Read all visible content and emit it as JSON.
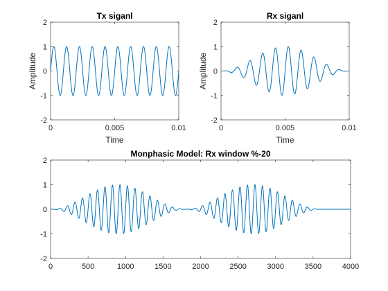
{
  "chart_data": [
    {
      "type": "line",
      "title": "Tx siganl",
      "xlabel": "Time",
      "ylabel": "Amplitude",
      "xlim": [
        0,
        0.01
      ],
      "ylim": [
        -2,
        2
      ],
      "xticks": [
        0,
        0.005,
        0.01
      ],
      "xtick_labels": [
        "0",
        "0.005",
        "0.01"
      ],
      "yticks": [
        -2,
        -1,
        0,
        1,
        2
      ],
      "ytick_labels": [
        "-2",
        "-1",
        "0",
        "1",
        "2"
      ],
      "grid": false,
      "series": [
        {
          "color": "#0072bd",
          "waveform": "sine",
          "amplitude": 1,
          "frequency_hz": 1000,
          "x_start": 0,
          "x_end": 0.01
        }
      ]
    },
    {
      "type": "line",
      "title": "Rx siganl",
      "xlabel": "Time",
      "ylabel": "Amplitude",
      "xlim": [
        0,
        0.01
      ],
      "ylim": [
        -2,
        2
      ],
      "xticks": [
        0,
        0.005,
        0.01
      ],
      "xtick_labels": [
        "0",
        "0.005",
        "0.01"
      ],
      "yticks": [
        -2,
        -1,
        0,
        1,
        2
      ],
      "ytick_labels": [
        "-2",
        "-1",
        "0",
        "1",
        "2"
      ],
      "grid": false,
      "series": [
        {
          "color": "#0072bd",
          "waveform": "windowed sine",
          "amplitude": 1,
          "frequency_hz": 1000,
          "x_start": 0,
          "x_end": 0.01
        }
      ]
    },
    {
      "type": "line",
      "title": "Monphasic Model: Rx window %-20",
      "xlabel": "",
      "ylabel": "",
      "xlim": [
        0,
        4000
      ],
      "ylim": [
        -2,
        2
      ],
      "xticks": [
        0,
        500,
        1000,
        1500,
        2000,
        2500,
        3000,
        3500,
        4000
      ],
      "xtick_labels": [
        "0",
        "500",
        "1000",
        "1500",
        "2000",
        "2500",
        "3000",
        "3500",
        "4000"
      ],
      "yticks": [
        -2,
        -1,
        0,
        1,
        2
      ],
      "ytick_labels": [
        "-2",
        "-1",
        "0",
        "1",
        "2"
      ],
      "grid": false,
      "series": [
        {
          "color": "#0072bd",
          "waveform": "two windowed sine bursts, then zero",
          "amplitude": 1,
          "period_samples": 100,
          "bursts": [
            [
              0,
              1800
            ],
            [
              1800,
              3600
            ]
          ],
          "signal_end": 3600,
          "x_end": 4000
        }
      ]
    }
  ]
}
